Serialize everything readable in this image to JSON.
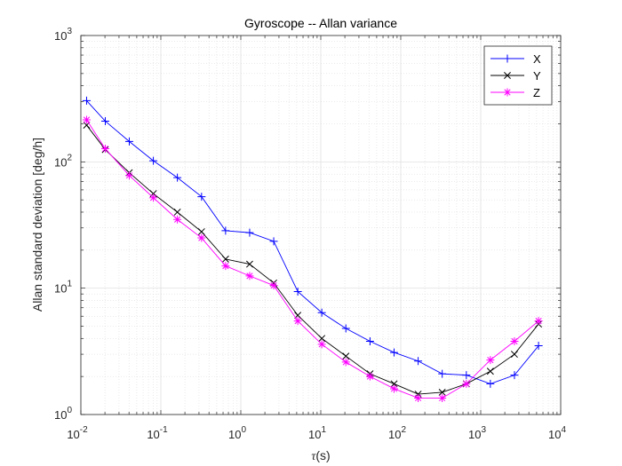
{
  "chart_data": {
    "type": "line",
    "title": "Gyroscope -- Allan variance",
    "xlabel_symbol": "τ",
    "xlabel_unit": "(s)",
    "ylabel": "Allan standard deviation [deg/h]",
    "xscale": "log",
    "yscale": "log",
    "xlim": [
      0.01,
      10000
    ],
    "ylim": [
      1,
      1000
    ],
    "grid": "on",
    "minor_grid": "on",
    "legend_position": "top-right",
    "x_ticks": [
      {
        "base": "10",
        "exp": "-2",
        "value": 0.01
      },
      {
        "base": "10",
        "exp": "-1",
        "value": 0.1
      },
      {
        "base": "10",
        "exp": "0",
        "value": 1
      },
      {
        "base": "10",
        "exp": "1",
        "value": 10
      },
      {
        "base": "10",
        "exp": "2",
        "value": 100
      },
      {
        "base": "10",
        "exp": "3",
        "value": 1000
      },
      {
        "base": "10",
        "exp": "4",
        "value": 10000
      }
    ],
    "y_ticks": [
      {
        "base": "10",
        "exp": "0",
        "value": 1
      },
      {
        "base": "10",
        "exp": "1",
        "value": 10
      },
      {
        "base": "10",
        "exp": "2",
        "value": 100
      },
      {
        "base": "10",
        "exp": "3",
        "value": 1000
      }
    ],
    "x": [
      0.0118,
      0.0202,
      0.0403,
      0.0806,
      0.161,
      0.323,
      0.645,
      1.29,
      2.58,
      5.16,
      10.3,
      20.6,
      41.3,
      82.6,
      165,
      330,
      661,
      1320,
      2640,
      5290
    ],
    "series": [
      {
        "name": "X",
        "marker": "+",
        "color": "#0000ff",
        "values": [
          305,
          210,
          145,
          102,
          75,
          53,
          28.5,
          27.5,
          23.5,
          9.4,
          6.4,
          4.8,
          3.8,
          3.1,
          2.65,
          2.1,
          2.05,
          1.75,
          2.05,
          3.5
        ]
      },
      {
        "name": "Y",
        "marker": "x",
        "color": "#000000",
        "values": [
          195,
          125,
          82,
          56,
          40,
          28,
          17,
          15.5,
          11,
          6.1,
          4.0,
          2.9,
          2.1,
          1.75,
          1.45,
          1.5,
          1.75,
          2.2,
          3.0,
          5.2
        ]
      },
      {
        "name": "Z",
        "marker": "*",
        "color": "#ff00ff",
        "values": [
          215,
          127,
          78,
          52,
          35,
          25,
          15,
          12.5,
          10.5,
          5.5,
          3.6,
          2.6,
          2.0,
          1.6,
          1.35,
          1.35,
          1.75,
          2.7,
          3.8,
          5.5
        ]
      }
    ]
  }
}
